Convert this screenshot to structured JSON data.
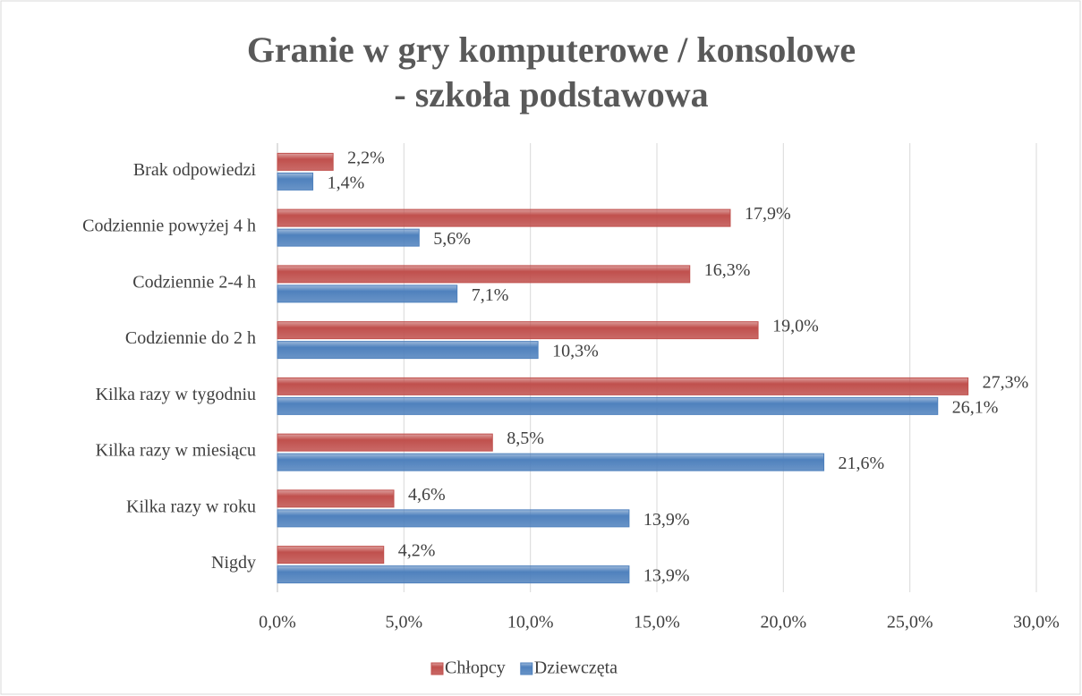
{
  "chart_data": {
    "type": "bar",
    "orientation": "horizontal",
    "title": [
      "Granie w gry komputerowe / konsolowe",
      "- szkoła podstawowa"
    ],
    "categories": [
      "Brak odpowiedzi",
      "Codziennie powyżej 4 h",
      "Codziennie 2-4 h",
      "Codziennie do 2 h",
      "Kilka razy w tygodniu",
      "Kilka razy w miesiącu",
      "Kilka razy w roku",
      "Nigdy"
    ],
    "series": [
      {
        "name": "Chłopcy",
        "color": "#c0504d",
        "values": [
          2.2,
          17.9,
          16.3,
          19.0,
          27.3,
          8.5,
          4.6,
          4.2
        ],
        "value_labels": [
          "2,2%",
          "17,9%",
          "16,3%",
          "19,0%",
          "27,3%",
          "8,5%",
          "4,6%",
          "4,2%"
        ]
      },
      {
        "name": "Dziewczęta",
        "color": "#4f81bd",
        "values": [
          1.4,
          5.6,
          7.1,
          10.3,
          26.1,
          21.6,
          13.9,
          13.9
        ],
        "value_labels": [
          "1,4%",
          "5,6%",
          "7,1%",
          "10,3%",
          "26,1%",
          "21,6%",
          "13,9%",
          "13,9%"
        ]
      }
    ],
    "xlim": [
      0,
      30
    ],
    "xticks": [
      {
        "value": 0,
        "label": "0,0%"
      },
      {
        "value": 5,
        "label": "5,0%"
      },
      {
        "value": 10,
        "label": "10,0%"
      },
      {
        "value": 15,
        "label": "15,0%"
      },
      {
        "value": 20,
        "label": "20,0%"
      },
      {
        "value": 25,
        "label": "25,0%"
      },
      {
        "value": 30,
        "label": "30,0%"
      }
    ],
    "grid": true,
    "legend": "bottom"
  }
}
